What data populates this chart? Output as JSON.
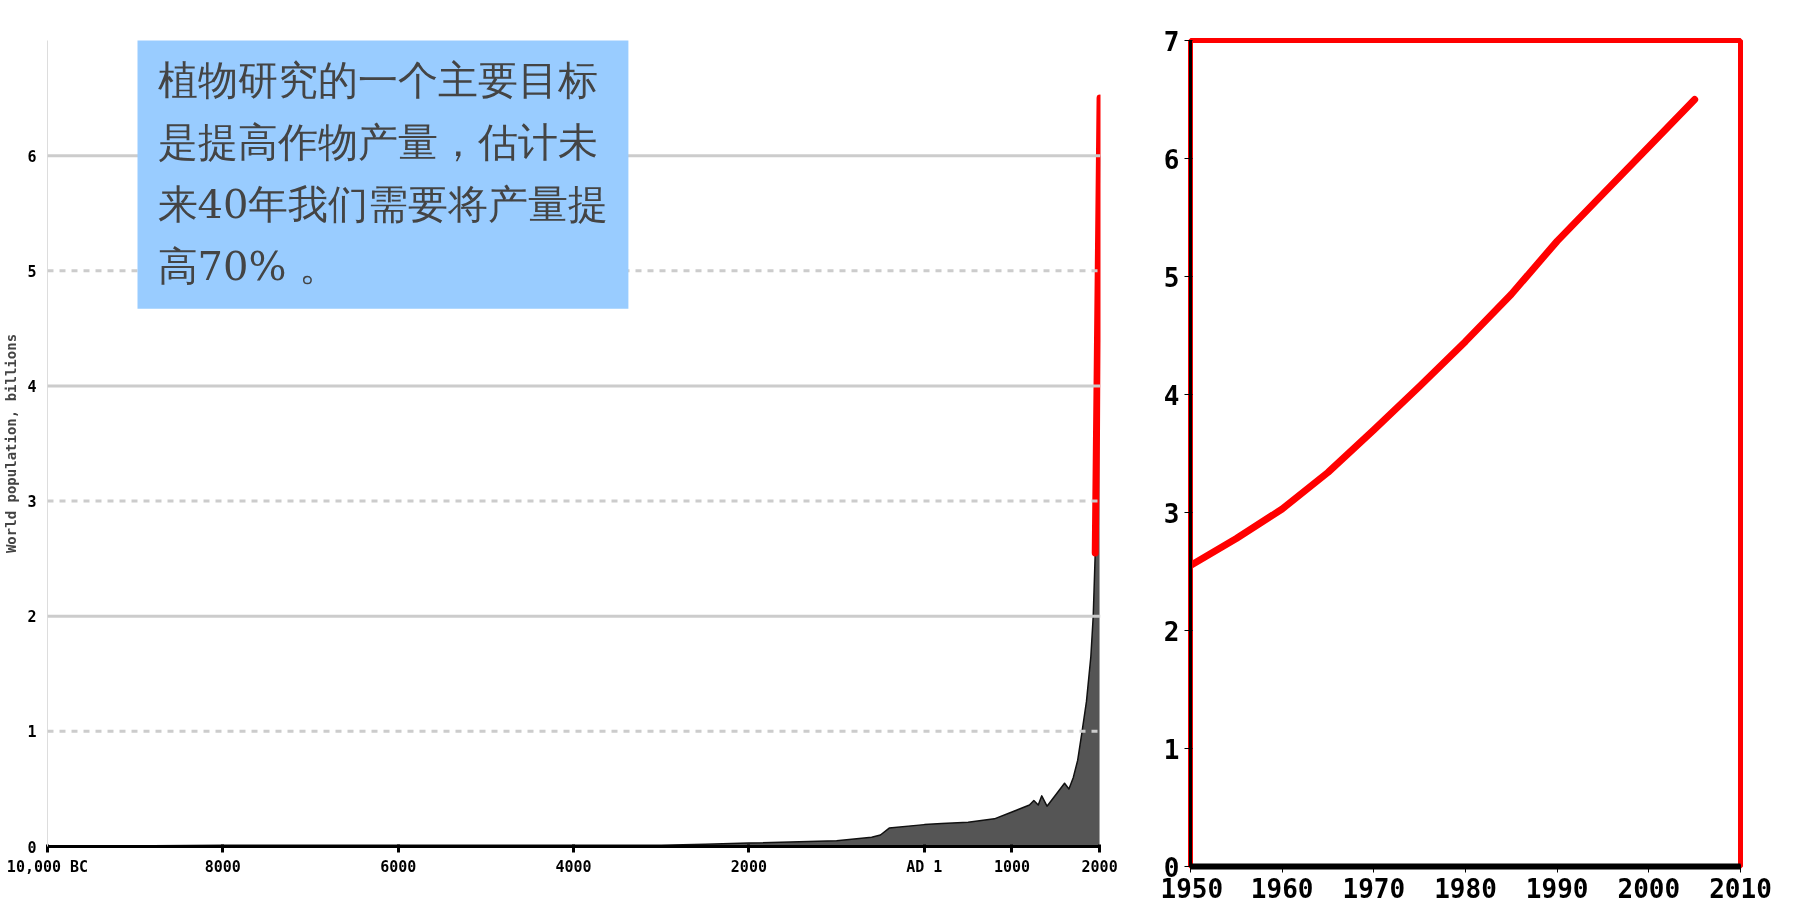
{
  "chart_data": [
    {
      "type": "area",
      "ylabel": "World population, billions",
      "xlim": [
        -10000,
        2010
      ],
      "ylim": [
        0,
        7
      ],
      "xticks": [
        {
          "value": -10000,
          "label": "10,000 BC"
        },
        {
          "value": -8000,
          "label": "8000"
        },
        {
          "value": -6000,
          "label": "6000"
        },
        {
          "value": -4000,
          "label": "4000"
        },
        {
          "value": -2000,
          "label": "2000"
        },
        {
          "value": 1,
          "label": "AD 1"
        },
        1000,
        2000
      ],
      "yticks": [
        0,
        1,
        2,
        3,
        4,
        5,
        6
      ],
      "grid": "y",
      "series": [
        {
          "color": "#555555",
          "x": [
            -10000,
            -8000,
            -5000,
            -3000,
            -2500,
            -2000,
            -1000,
            -600,
            -500,
            -400,
            1,
            200,
            500,
            800,
            1000,
            1200,
            1250,
            1300,
            1340,
            1400,
            1500,
            1600,
            1650,
            1700,
            1750,
            1800,
            1850,
            1900,
            1927,
            1950,
            1960,
            1975,
            1987,
            1999
          ],
          "values": [
            0,
            0.01,
            0.01,
            0.01,
            0.02,
            0.03,
            0.05,
            0.08,
            0.1,
            0.16,
            0.19,
            0.2,
            0.21,
            0.24,
            0.3,
            0.36,
            0.4,
            0.36,
            0.44,
            0.35,
            0.45,
            0.55,
            0.5,
            0.6,
            0.75,
            1.0,
            1.26,
            1.65,
            2.0,
            2.55,
            3.0,
            4.0,
            5.0,
            6.0
          ]
        },
        {
          "type": "line",
          "color": "#ff0000",
          "x": [
            1950,
            2005
          ],
          "values": [
            2.55,
            6.5
          ]
        }
      ],
      "annotations": [
        "植物研究的一个主要目标是提高作物产量，估计未来40年我们需要将产量提高70% 。"
      ]
    },
    {
      "type": "line",
      "xlim": [
        1950,
        2010
      ],
      "ylim": [
        0,
        7
      ],
      "xticks": [
        1950,
        1960,
        1970,
        1980,
        1990,
        2000,
        2010
      ],
      "yticks": [
        0,
        1,
        2,
        3,
        4,
        5,
        6,
        7
      ],
      "grid": false,
      "series": [
        {
          "color": "#ff0000",
          "x": [
            1950,
            1955,
            1960,
            1965,
            1970,
            1975,
            1980,
            1985,
            1990,
            1995,
            2000,
            2005
          ],
          "values": [
            2.55,
            2.78,
            3.03,
            3.34,
            3.7,
            4.07,
            4.45,
            4.85,
            5.3,
            5.7,
            6.1,
            6.5
          ]
        }
      ]
    }
  ]
}
